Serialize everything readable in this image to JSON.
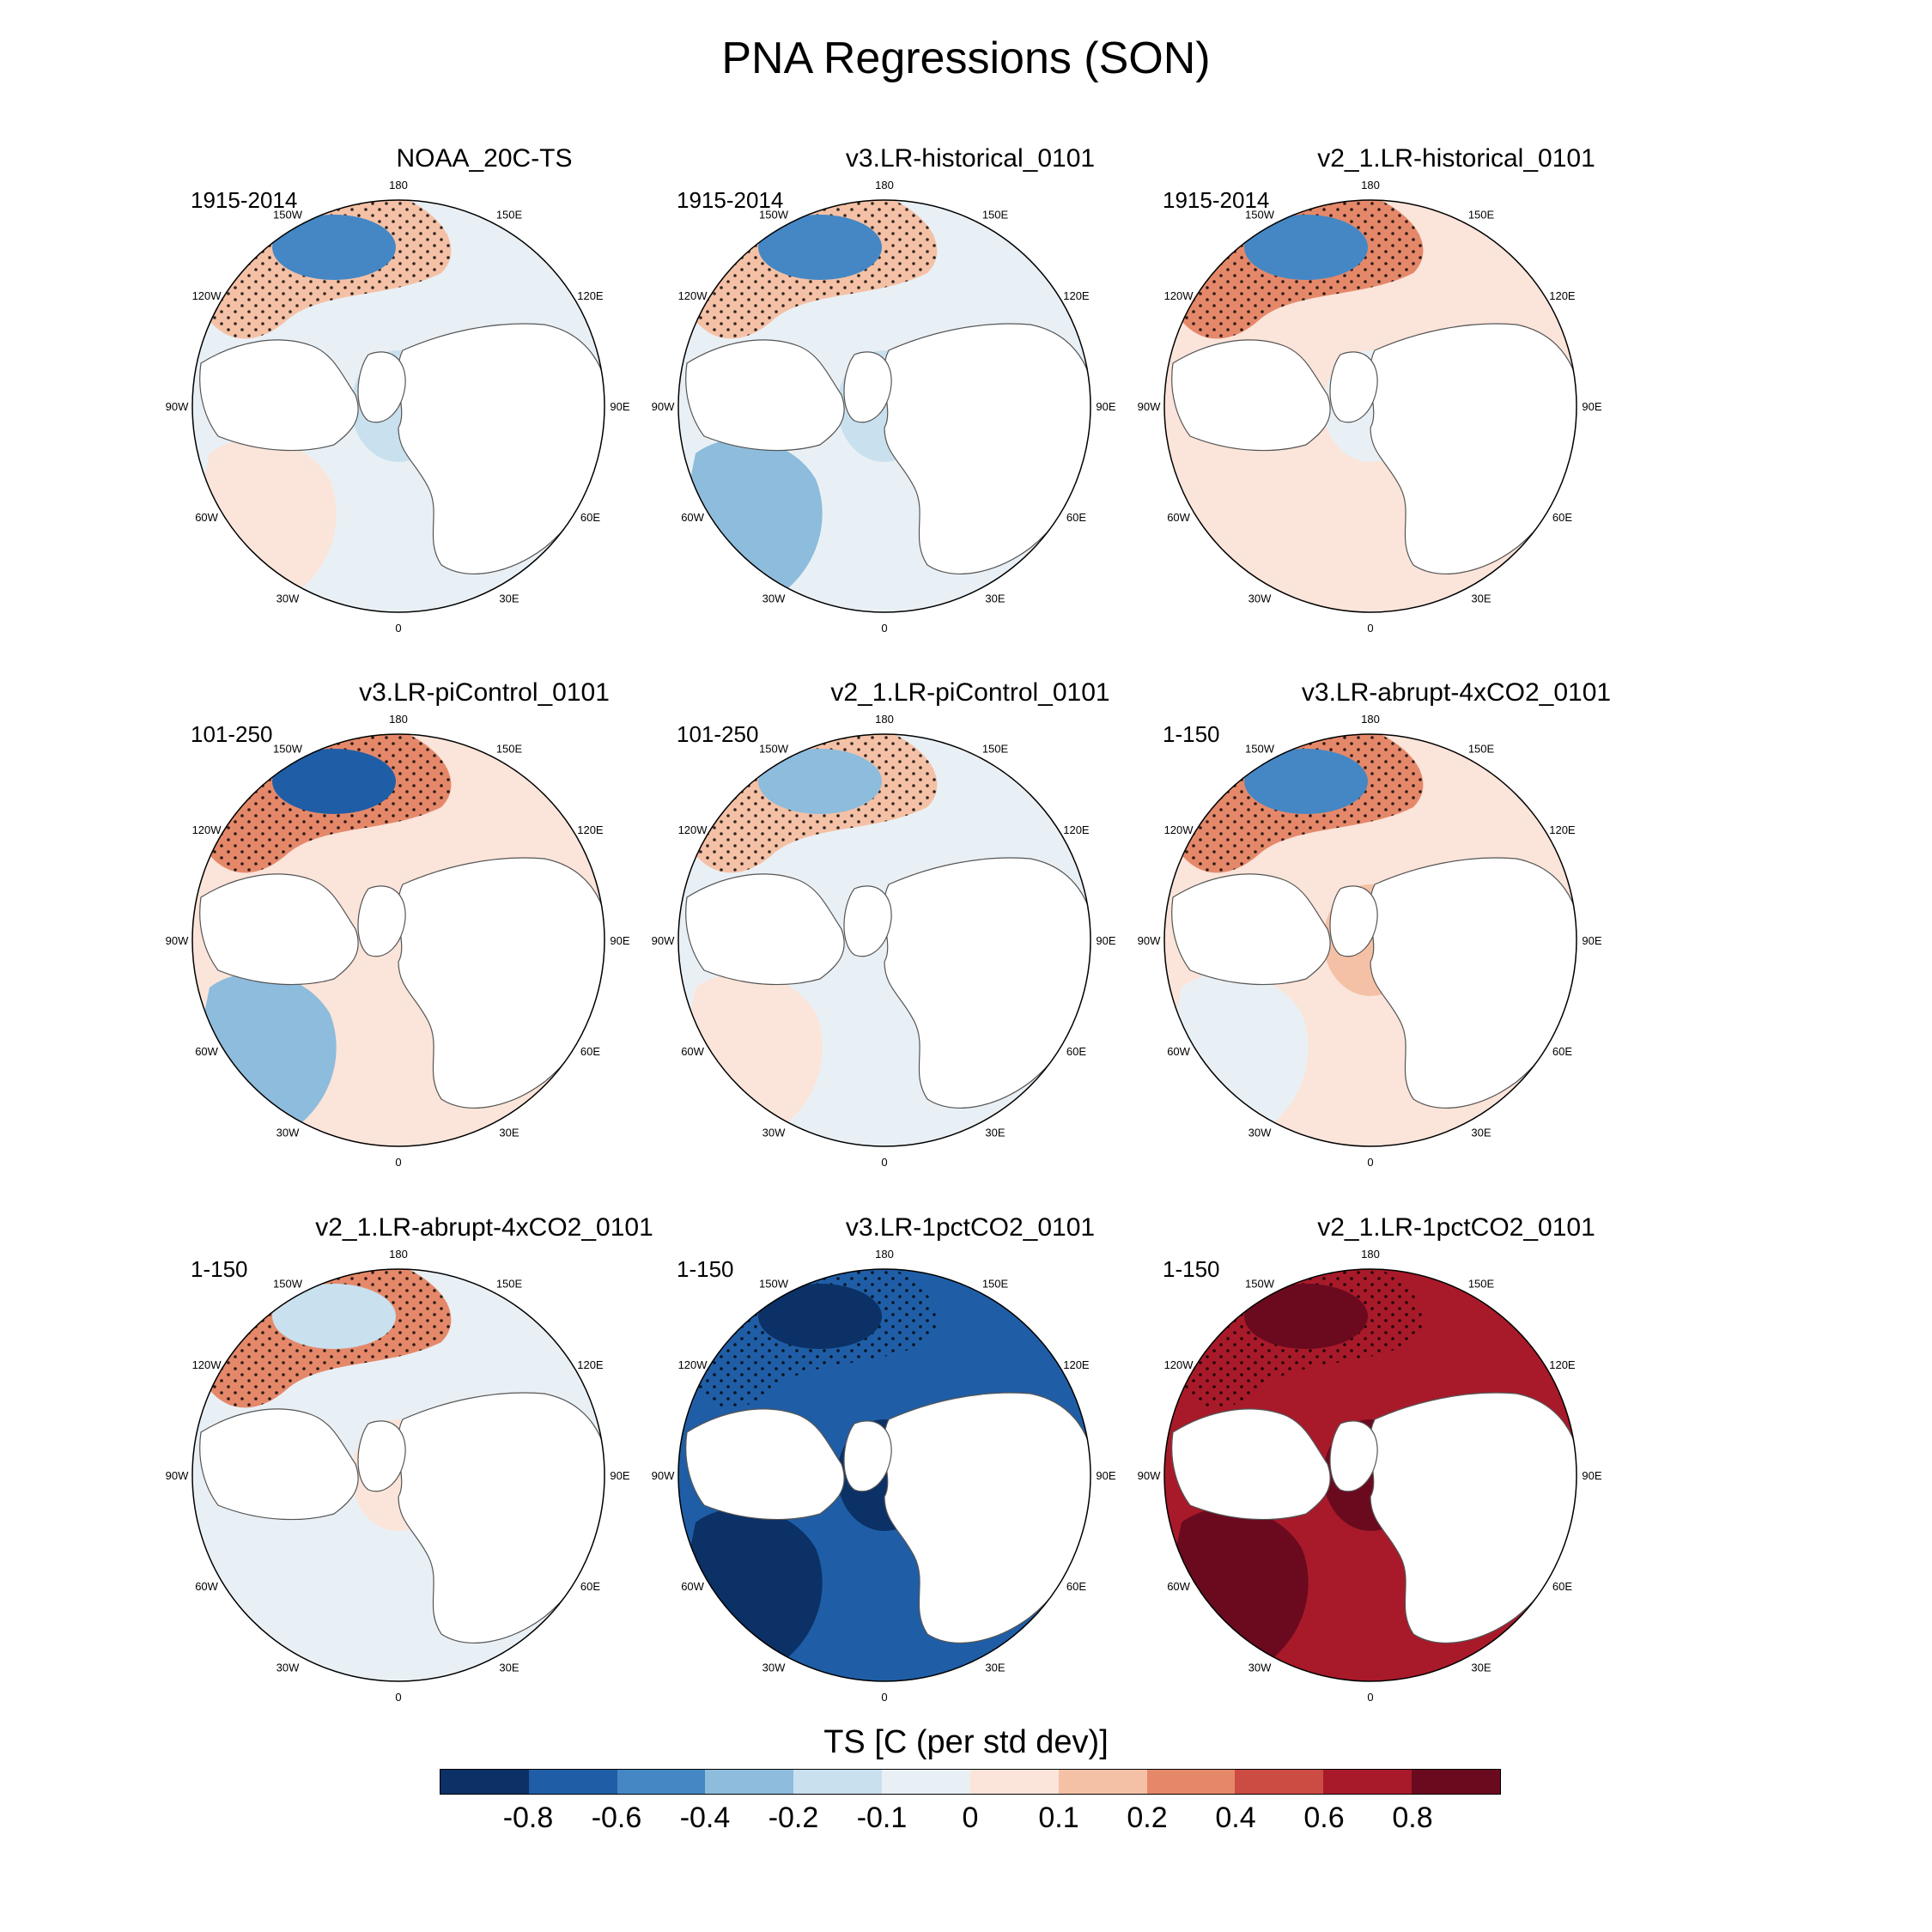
{
  "title": "PNA Regressions (SON)",
  "colorbar": {
    "title": "TS [C (per std dev)]",
    "labels": [
      "-0.8",
      "-0.6",
      "-0.4",
      "-0.2",
      "-0.1",
      "0",
      "0.1",
      "0.2",
      "0.4",
      "0.6",
      "0.8"
    ],
    "colors": [
      "#0b3166",
      "#1f5ea6",
      "#4487c4",
      "#8dbcdc",
      "#c9e0ee",
      "#e9f0f5",
      "#fbe4d9",
      "#f5c1a6",
      "#e5886a",
      "#cc4b43",
      "#a81a2a",
      "#6b0a1f"
    ]
  },
  "lon_labels": [
    "180",
    "150E",
    "120E",
    "90E",
    "60E",
    "30E",
    "0",
    "30W",
    "60W",
    "90W",
    "120W",
    "150W"
  ],
  "panels": [
    {
      "title": "NOAA_20C-TS",
      "years": "1915-2014",
      "fill": {
        "ocean": 5,
        "pac_high": 7,
        "pac_low": 2,
        "atl": 6,
        "arctic": 4
      }
    },
    {
      "title": "v3.LR-historical_0101",
      "years": "1915-2014",
      "fill": {
        "ocean": 5,
        "pac_high": 7,
        "pac_low": 2,
        "atl": 3,
        "arctic": 4
      }
    },
    {
      "title": "v2_1.LR-historical_0101",
      "years": "1915-2014",
      "fill": {
        "ocean": 6,
        "pac_high": 8,
        "pac_low": 2,
        "atl": 6,
        "arctic": 5
      }
    },
    {
      "title": "v3.LR-piControl_0101",
      "years": "101-250",
      "fill": {
        "ocean": 6,
        "pac_high": 8,
        "pac_low": 1,
        "atl": 3,
        "arctic": 6
      }
    },
    {
      "title": "v2_1.LR-piControl_0101",
      "years": "101-250",
      "fill": {
        "ocean": 5,
        "pac_high": 7,
        "pac_low": 3,
        "atl": 6,
        "arctic": 5
      }
    },
    {
      "title": "v3.LR-abrupt-4xCO2_0101",
      "years": "1-150",
      "fill": {
        "ocean": 6,
        "pac_high": 8,
        "pac_low": 2,
        "atl": 5,
        "arctic": 7
      }
    },
    {
      "title": "v2_1.LR-abrupt-4xCO2_0101",
      "years": "1-150",
      "fill": {
        "ocean": 5,
        "pac_high": 8,
        "pac_low": 4,
        "atl": 5,
        "arctic": 6
      }
    },
    {
      "title": "v3.LR-1pctCO2_0101",
      "years": "1-150",
      "fill": {
        "ocean": 1,
        "pac_high": 1,
        "pac_low": 0,
        "atl": 0,
        "arctic": 0
      }
    },
    {
      "title": "v2_1.LR-1pctCO2_0101",
      "years": "1-150",
      "fill": {
        "ocean": 10,
        "pac_high": 10,
        "pac_low": 11,
        "atl": 11,
        "arctic": 11
      }
    }
  ]
}
